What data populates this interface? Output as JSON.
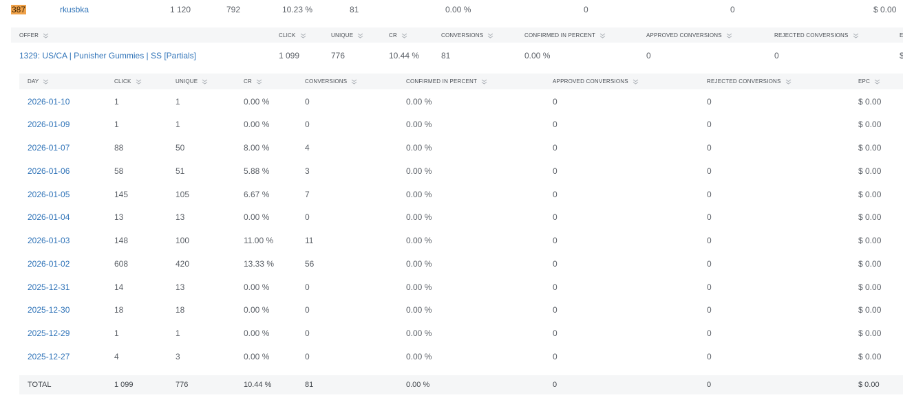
{
  "top_row": {
    "id": "387",
    "name": "rkusbka",
    "click": "1 120",
    "unique": "792",
    "cr": "10.23 %",
    "conversions": "81",
    "confirmed": "0.00 %",
    "approved": "0",
    "rejected": "0",
    "epc": "$ 0.00"
  },
  "offer_table": {
    "headers": {
      "offer": "OFFER",
      "click": "CLICK",
      "unique": "UNIQUE",
      "cr": "CR",
      "conversions": "CONVERSIONS",
      "confirmed": "CONFIRMED IN PERCENT",
      "approved": "APPROVED CONVERSIONS",
      "rejected": "REJECTED CONVERSIONS",
      "epc_partial": "E"
    },
    "row": {
      "offer": "1329: US/CA | Punisher Gummies | SS [Partials]",
      "click": "1 099",
      "unique": "776",
      "cr": "10.44 %",
      "conversions": "81",
      "confirmed": "0.00 %",
      "approved": "0",
      "rejected": "0",
      "epc_partial": "$"
    }
  },
  "day_table": {
    "headers": {
      "day": "DAY",
      "click": "CLICK",
      "unique": "UNIQUE",
      "cr": "CR",
      "conversions": "CONVERSIONS",
      "confirmed": "CONFIRMED IN PERCENT",
      "approved": "APPROVED CONVERSIONS",
      "rejected": "REJECTED CONVERSIONS",
      "epc": "EPC"
    },
    "rows": [
      {
        "day": "2026-01-10",
        "click": "1",
        "unique": "1",
        "cr": "0.00 %",
        "conversions": "0",
        "confirmed": "0.00 %",
        "approved": "0",
        "rejected": "0",
        "epc": "$ 0.00"
      },
      {
        "day": "2026-01-09",
        "click": "1",
        "unique": "1",
        "cr": "0.00 %",
        "conversions": "0",
        "confirmed": "0.00 %",
        "approved": "0",
        "rejected": "0",
        "epc": "$ 0.00"
      },
      {
        "day": "2026-01-07",
        "click": "88",
        "unique": "50",
        "cr": "8.00 %",
        "conversions": "4",
        "confirmed": "0.00 %",
        "approved": "0",
        "rejected": "0",
        "epc": "$ 0.00"
      },
      {
        "day": "2026-01-06",
        "click": "58",
        "unique": "51",
        "cr": "5.88 %",
        "conversions": "3",
        "confirmed": "0.00 %",
        "approved": "0",
        "rejected": "0",
        "epc": "$ 0.00"
      },
      {
        "day": "2026-01-05",
        "click": "145",
        "unique": "105",
        "cr": "6.67 %",
        "conversions": "7",
        "confirmed": "0.00 %",
        "approved": "0",
        "rejected": "0",
        "epc": "$ 0.00"
      },
      {
        "day": "2026-01-04",
        "click": "13",
        "unique": "13",
        "cr": "0.00 %",
        "conversions": "0",
        "confirmed": "0.00 %",
        "approved": "0",
        "rejected": "0",
        "epc": "$ 0.00"
      },
      {
        "day": "2026-01-03",
        "click": "148",
        "unique": "100",
        "cr": "11.00 %",
        "conversions": "11",
        "confirmed": "0.00 %",
        "approved": "0",
        "rejected": "0",
        "epc": "$ 0.00"
      },
      {
        "day": "2026-01-02",
        "click": "608",
        "unique": "420",
        "cr": "13.33 %",
        "conversions": "56",
        "confirmed": "0.00 %",
        "approved": "0",
        "rejected": "0",
        "epc": "$ 0.00"
      },
      {
        "day": "2025-12-31",
        "click": "14",
        "unique": "13",
        "cr": "0.00 %",
        "conversions": "0",
        "confirmed": "0.00 %",
        "approved": "0",
        "rejected": "0",
        "epc": "$ 0.00"
      },
      {
        "day": "2025-12-30",
        "click": "18",
        "unique": "18",
        "cr": "0.00 %",
        "conversions": "0",
        "confirmed": "0.00 %",
        "approved": "0",
        "rejected": "0",
        "epc": "$ 0.00"
      },
      {
        "day": "2025-12-29",
        "click": "1",
        "unique": "1",
        "cr": "0.00 %",
        "conversions": "0",
        "confirmed": "0.00 %",
        "approved": "0",
        "rejected": "0",
        "epc": "$ 0.00"
      },
      {
        "day": "2025-12-27",
        "click": "4",
        "unique": "3",
        "cr": "0.00 %",
        "conversions": "0",
        "confirmed": "0.00 %",
        "approved": "0",
        "rejected": "0",
        "epc": "$ 0.00"
      }
    ],
    "total": {
      "label": "TOTAL",
      "click": "1 099",
      "unique": "776",
      "cr": "10.44 %",
      "conversions": "81",
      "confirmed": "0.00 %",
      "approved": "0",
      "rejected": "0",
      "epc": "$ 0.00"
    }
  },
  "colors": {
    "link": "#2f73b8",
    "badge": "#f0a24a",
    "header_band": "#f5f6f7"
  },
  "icons": {
    "sort": "double-chevron-down-icon"
  }
}
